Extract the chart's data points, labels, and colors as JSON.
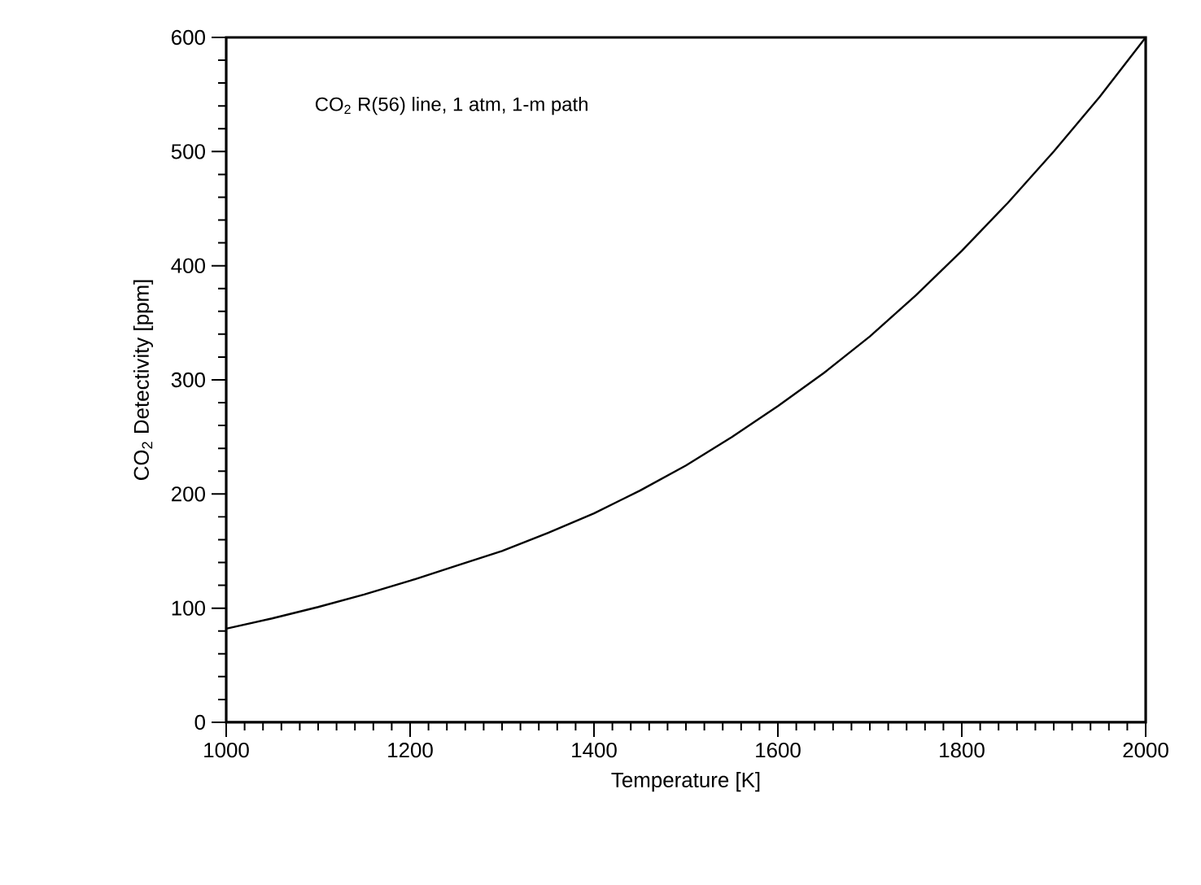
{
  "chart_data": {
    "type": "line",
    "xlabel": "Temperature  [K]",
    "ylabel": "CO$_{2}$ Detectivity  [ppm]",
    "annotations": [
      "CO$_{2}$ R(56) line, 1 atm, 1-m path"
    ],
    "x": [
      1000,
      1050,
      1100,
      1150,
      1200,
      1250,
      1300,
      1350,
      1400,
      1450,
      1500,
      1550,
      1600,
      1650,
      1700,
      1750,
      1800,
      1850,
      1900,
      1950,
      2000
    ],
    "series": [
      {
        "color": "#000000",
        "values": [
          82,
          91,
          101,
          112,
          124,
          137,
          150,
          166,
          183,
          203,
          225,
          250,
          277,
          306,
          338,
          374,
          413,
          455,
          500,
          548,
          600
        ]
      }
    ],
    "xlim": [
      1000,
      2000
    ],
    "xticks": [
      1000,
      1200,
      1400,
      1600,
      1800,
      2000
    ],
    "ylim": [
      0,
      600
    ],
    "yticks": [
      0,
      100,
      200,
      300,
      400,
      500,
      600
    ],
    "marker": "none",
    "line_style": "solid"
  }
}
